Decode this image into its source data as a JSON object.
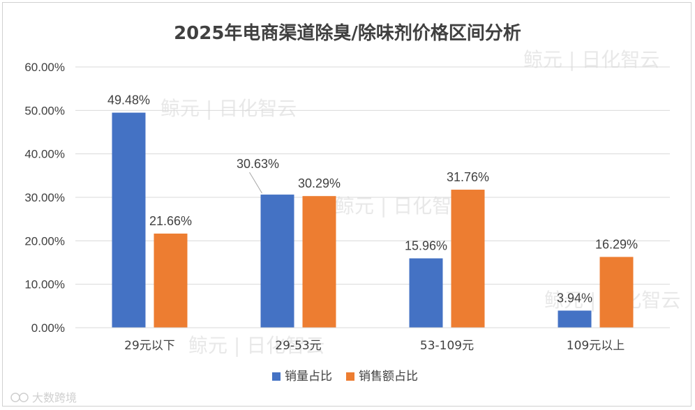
{
  "chart_data": {
    "type": "bar",
    "title": "2025年电商渠道除臭/除味剂价格区间分析",
    "categories": [
      "29元以下",
      "29-53元",
      "53-109元",
      "109元以上"
    ],
    "series": [
      {
        "name": "销量占比",
        "color": "#4472C4",
        "values": [
          49.48,
          30.63,
          15.96,
          3.94
        ],
        "labels": [
          "49.48%",
          "30.63%",
          "15.96%",
          "3.94%"
        ]
      },
      {
        "name": "销售额占比",
        "color": "#ED7D31",
        "values": [
          21.66,
          30.29,
          31.76,
          16.29
        ],
        "labels": [
          "21.66%",
          "30.29%",
          "31.76%",
          "16.29%"
        ]
      }
    ],
    "ylim": [
      0,
      60
    ],
    "yticks": [
      "0.00%",
      "10.00%",
      "20.00%",
      "30.00%",
      "40.00%",
      "50.00%",
      "60.00%"
    ],
    "grid": true,
    "legend_position": "bottom",
    "xlabel": "",
    "ylabel": ""
  },
  "watermarks": {
    "brand": "鲸元 | 日化智云",
    "footer": "大数跨境"
  }
}
